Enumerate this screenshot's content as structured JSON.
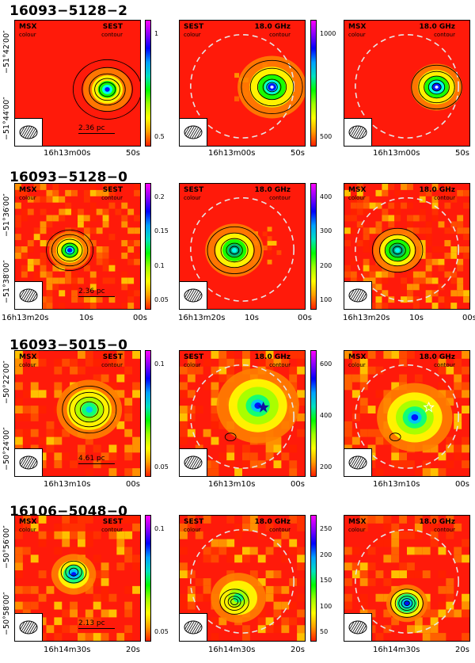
{
  "rows": [
    {
      "title": "16093−5128−2",
      "panels": [
        {
          "top_left": "MSX",
          "top_left_sub": "colour",
          "top_right": "SEST",
          "top_right_sub": "contour",
          "scale": "2.36 pc"
        },
        {
          "top_left": "SEST",
          "top_left_sub": "colour",
          "top_right": "18.0 GHz",
          "top_right_sub": "contour"
        },
        {
          "top_left": "MSX",
          "top_left_sub": "colour",
          "top_right": "18.0 GHz",
          "top_right_sub": "contour"
        }
      ],
      "cbar1": [
        "1",
        "0.5"
      ],
      "cbar2": [
        "1000",
        "500"
      ],
      "xticks": [
        "16h13m00s",
        "50s"
      ],
      "yticks": [
        "−51°42′00″",
        "−51°44′00″"
      ]
    },
    {
      "title": "16093−5128−0",
      "panels": [
        {
          "top_left": "MSX",
          "top_left_sub": "colour",
          "top_right": "SEST",
          "top_right_sub": "contour",
          "scale": "2.36 pc"
        },
        {
          "top_left": "SEST",
          "top_left_sub": "colour",
          "top_right": "18.0 GHz",
          "top_right_sub": "contour"
        },
        {
          "top_left": "MSX",
          "top_left_sub": "colour",
          "top_right": "18.0 GHz",
          "top_right_sub": "contour"
        }
      ],
      "cbar1": [
        "0.2",
        "0.15",
        "0.1",
        "0.05"
      ],
      "cbar2": [
        "400",
        "300",
        "200",
        "100"
      ],
      "xticks": [
        "16h13m20s",
        "10s",
        "00s"
      ],
      "yticks": [
        "−51°36′00″",
        "−51°38′00″"
      ]
    },
    {
      "title": "16093−5015−0",
      "panels": [
        {
          "top_left": "MSX",
          "top_left_sub": "colour",
          "top_right": "SEST",
          "top_right_sub": "contour",
          "scale": "4.61 pc"
        },
        {
          "top_left": "SEST",
          "top_left_sub": "colour",
          "top_right": "18.0 GHz",
          "top_right_sub": "contour"
        },
        {
          "top_left": "MSX",
          "top_left_sub": "colour",
          "top_right": "18.0 GHz",
          "top_right_sub": "contour"
        }
      ],
      "cbar1": [
        "0.1",
        "0.05"
      ],
      "cbar2": [
        "600",
        "400",
        "200"
      ],
      "xticks": [
        "16h13m10s",
        "00s"
      ],
      "yticks": [
        "−50°22′00″",
        "−50°24′00″"
      ]
    },
    {
      "title": "16106−5048−0",
      "panels": [
        {
          "top_left": "MSX",
          "top_left_sub": "colour",
          "top_right": "SEST",
          "top_right_sub": "contour",
          "scale": "2.13 pc"
        },
        {
          "top_left": "SEST",
          "top_left_sub": "colour",
          "top_right": "18.0 GHz",
          "top_right_sub": "contour"
        },
        {
          "top_left": "MSX",
          "top_left_sub": "colour",
          "top_right": "18.0 GHz",
          "top_right_sub": "contour"
        }
      ],
      "cbar1": [
        "0.1",
        "0.05"
      ],
      "cbar2": [
        "250",
        "200",
        "150",
        "100",
        "50"
      ],
      "xticks": [
        "16h14m30s",
        "20s"
      ],
      "yticks": [
        "−50°56′00″",
        "−50°58′00″"
      ]
    }
  ],
  "colors": {
    "background_map": "#ff1a0a",
    "contour": "#000000",
    "primary_beam_circle": "#e6e6e6"
  }
}
